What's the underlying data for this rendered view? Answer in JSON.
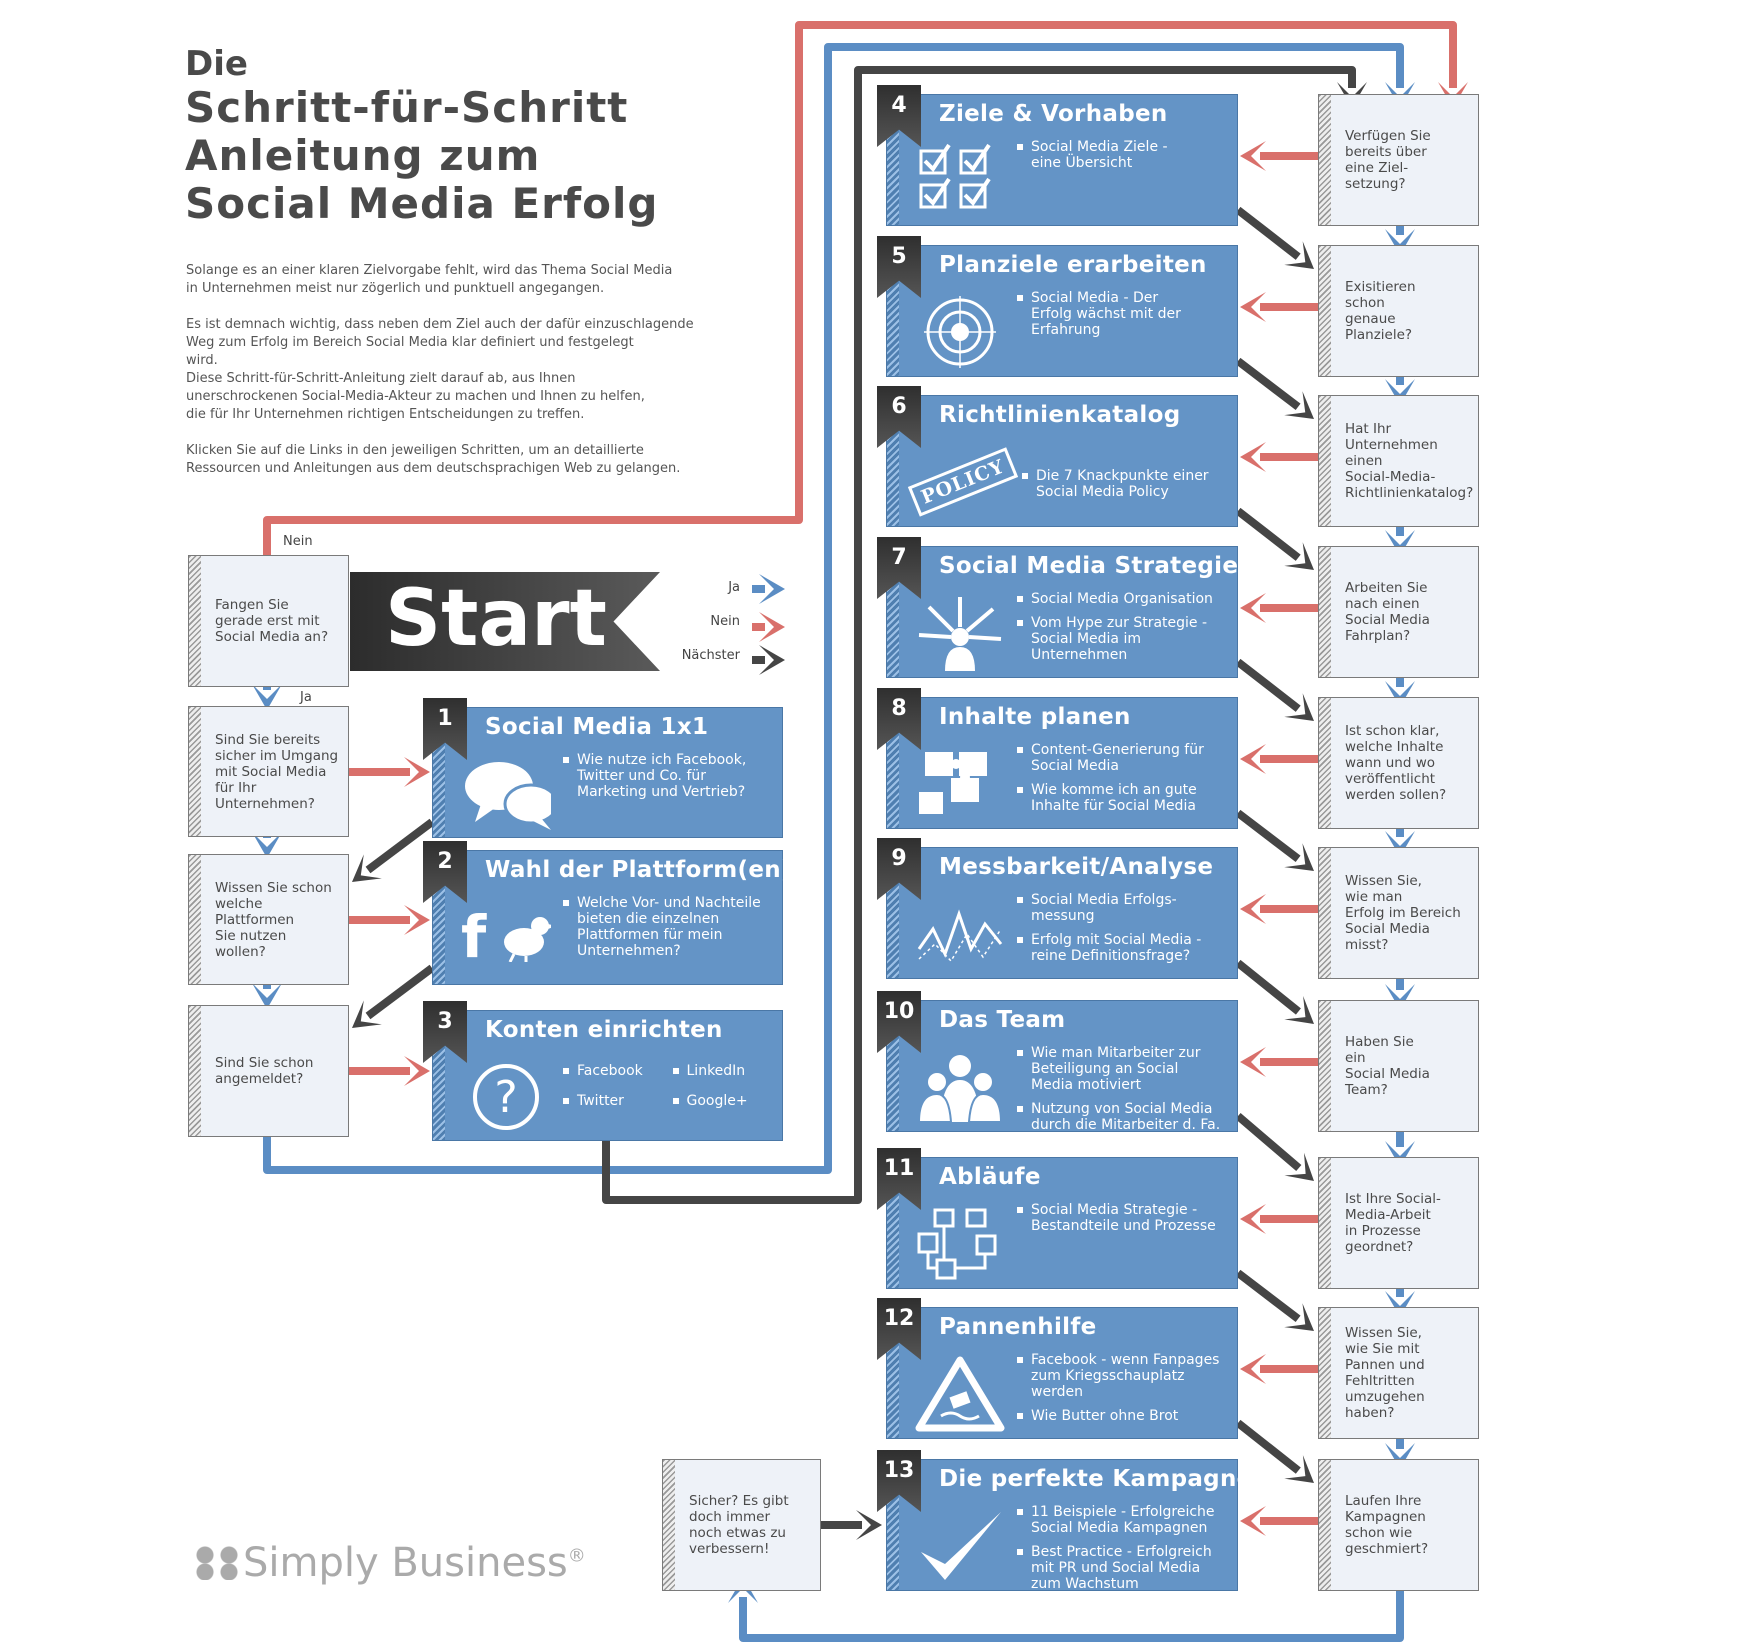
{
  "title": {
    "line0": "Die",
    "line1": "Schritt-für-Schritt",
    "line2": "Anleitung zum",
    "line3": "Social Media Erfolg"
  },
  "intro": [
    "Solange es an einer klaren Zielvorgabe fehlt, wird das Thema Social Media\nin Unternehmen meist nur zögerlich und punktuell angegangen.",
    "Es ist demnach wichtig, dass neben dem Ziel auch der dafür einzuschlagende\nWeg zum Erfolg im Bereich Social Media klar definiert und festgelegt\nwird.\nDiese Schritt-für-Schritt-Anleitung zielt darauf ab, aus Ihnen\nunerschrockenen Social-Media-Akteur zu machen und Ihnen zu helfen,\ndie für Ihr Unternehmen richtigen Entscheidungen zu treffen.",
    "Klicken Sie auf die Links in den jeweiligen Schritten, um an detaillierte\nRessourcen und Anleitungen aus dem deutschsprachigen Web zu gelangen."
  ],
  "start_label": "Start",
  "labels": {
    "nein": "Nein",
    "ja": "Ja"
  },
  "legend": [
    {
      "label": "Ja",
      "color": "#5b8dc4"
    },
    {
      "label": "Nein",
      "color": "#d9706b"
    },
    {
      "label": "Nächster",
      "color": "#454545"
    }
  ],
  "colors": {
    "yes": "#5b8dc4",
    "no": "#d9706b",
    "next": "#454545",
    "step": "#6494c6"
  },
  "left_questions": [
    "Fangen Sie\ngerade erst mit\nSocial Media an?",
    "Sind Sie bereits\nsicher im Umgang\nmit Social Media\nfür Ihr\nUnternehmen?",
    "Wissen Sie schon\nwelche\nPlattformen\nSie nutzen wollen?",
    "Sind Sie schon\nangemeldet?"
  ],
  "right_questions": [
    "Verfügen Sie\nbereits über\neine Ziel-\nsetzung?",
    "Exisitieren\nschon\ngenaue\nPlanziele?",
    "Hat Ihr\nUnternehmen\neinen\nSocial-Media-\nRichtlinienkatalog?",
    "Arbeiten Sie\nnach einen\nSocial Media\nFahrplan?",
    "Ist schon klar,\nwelche Inhalte\nwann und wo\nveröffentlicht\nwerden sollen?",
    "Wissen Sie,\nwie man\nErfolg im Bereich\nSocial Media\nmisst?",
    "Haben Sie\nein\nSocial Media\nTeam?",
    "Ist Ihre Social-\nMedia-Arbeit\nin Prozesse\ngeordnet?",
    "Wissen Sie,\nwie Sie mit\nPannen und\nFehltritten\numzugehen\nhaben?",
    "Laufen Ihre\nKampagnen\nschon wie\ngeschmiert?"
  ],
  "final_question": "Sicher? Es gibt\ndoch immer\nnoch etwas zu\nverbessern!",
  "steps": [
    {
      "number": "1",
      "title": "Social Media 1x1",
      "icon": "speech-bubbles",
      "bullets": [
        "Wie nutze ich Facebook,\nTwitter und Co. für\nMarketing und Vertrieb?"
      ]
    },
    {
      "number": "2",
      "title": "Wahl der Plattform(en)",
      "icon": "facebook-twitter",
      "icon_text": "f",
      "bullets": [
        "Welche Vor- und Nachteile\nbieten die einzelnen\nPlattformen für mein\nUnternehmen?"
      ]
    },
    {
      "number": "3",
      "title": "Konten einrichten",
      "icon": "question-circle",
      "icon_text": "?",
      "grid": true,
      "bullets": [
        "Facebook",
        "LinkedIn",
        "Twitter",
        "Google+"
      ]
    },
    {
      "number": "4",
      "title": "Ziele & Vorhaben",
      "icon": "checkboxes",
      "icon_text": "☑☑\n☑☑",
      "bullets": [
        "Social Media Ziele -\neine Übersicht"
      ]
    },
    {
      "number": "5",
      "title": "Planziele erarbeiten",
      "icon": "target",
      "icon_text": "◎",
      "bullets": [
        "Social Media - Der\nErfolg wächst mit der\nErfahrung"
      ]
    },
    {
      "number": "6",
      "title": "Richtlinienkatalog",
      "icon": "policy-stamp",
      "icon_text": "POLICY",
      "bullets": [
        "Die 7 Knackpunkte einer\nSocial Media Policy"
      ]
    },
    {
      "number": "7",
      "title": "Social Media Strategie",
      "icon": "person-arrows",
      "icon_text": "✱",
      "bullets": [
        "Social Media Organisation",
        "Vom Hype zur Strategie -\nSocial Media im\nUnternehmen"
      ]
    },
    {
      "number": "8",
      "title": "Inhalte planen",
      "icon": "puzzle",
      "icon_text": "✚",
      "bullets": [
        "Content-Generierung für\nSocial Media",
        "Wie komme ich an gute\nInhalte für Social Media"
      ]
    },
    {
      "number": "9",
      "title": "Messbarkeit/Analyse",
      "icon": "line-chart",
      "bullets": [
        "Social Media Erfolgs-\nmessung",
        "Erfolg mit Social Media -\nreine Definitionsfrage?"
      ]
    },
    {
      "number": "10",
      "title": "Das Team",
      "icon": "team",
      "bullets": [
        "Wie man Mitarbeiter zur\nBeteiligung an Social\nMedia motiviert",
        "Nutzung von Social Media\ndurch die Mitarbeiter d. Fa."
      ]
    },
    {
      "number": "11",
      "title": "Abläufe",
      "icon": "flowchart",
      "bullets": [
        "Social Media Strategie -\nBestandteile und Prozesse"
      ]
    },
    {
      "number": "12",
      "title": "Pannenhilfe",
      "icon": "warning-sign",
      "icon_text": "⚠",
      "bullets": [
        "Facebook - wenn Fanpages\nzum Kriegsschauplatz\nwerden",
        "Wie Butter ohne Brot"
      ]
    },
    {
      "number": "13",
      "title": "Die perfekte Kampagne",
      "icon": "checkmark",
      "icon_text": "✓",
      "bullets": [
        "11 Beispiele - Erfolgreiche\nSocial Media Kampagnen",
        "Best Practice - Erfolgreich\nmit PR und Social Media\nzum Wachstum"
      ]
    }
  ],
  "logo": {
    "text": "Simply Business",
    "mark": "®"
  }
}
